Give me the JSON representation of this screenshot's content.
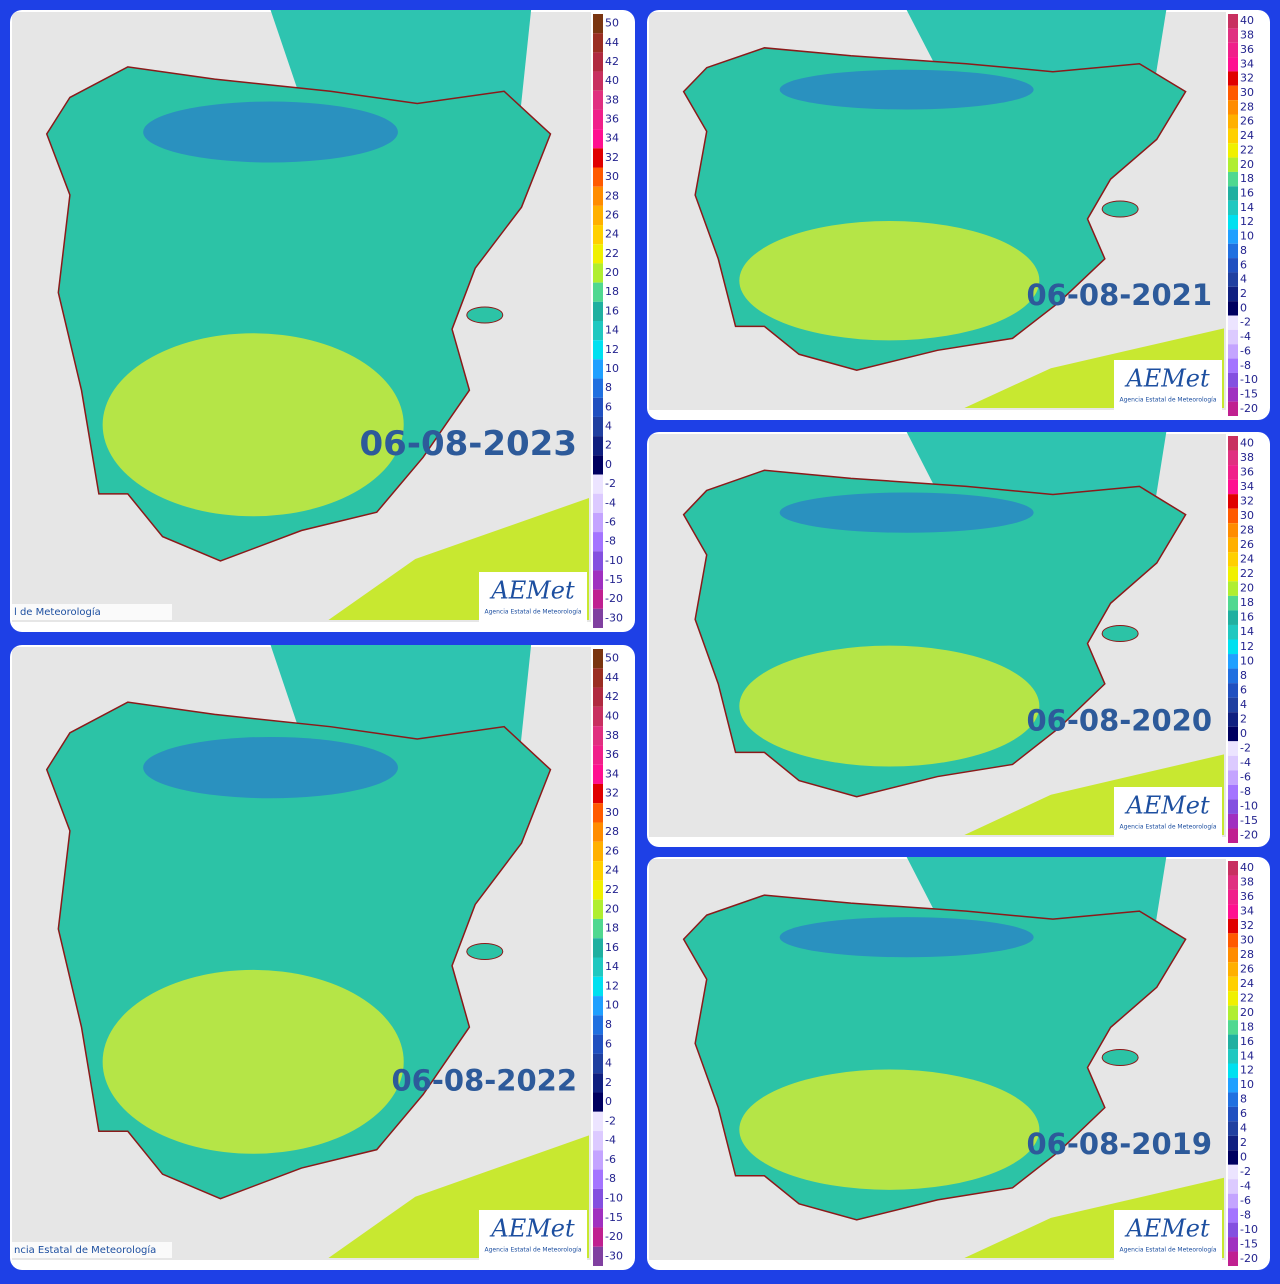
{
  "logo": {
    "name": "AEMet",
    "subtitle": "Agencia Estatal de Meteorología"
  },
  "panels": [
    {
      "date": "06-08-2023",
      "credit": "l de Meteorología",
      "legend": [
        "50",
        "44",
        "42",
        "40",
        "38",
        "36",
        "34",
        "32",
        "30",
        "28",
        "26",
        "24",
        "22",
        "20",
        "18",
        "16",
        "14",
        "12",
        "10",
        "8",
        "6",
        "4",
        "2",
        "0",
        "-2",
        "-4",
        "-6",
        "-8",
        "-10",
        "-15",
        "-20",
        "-30"
      ]
    },
    {
      "date": "06-08-2021",
      "legend": [
        "40",
        "38",
        "36",
        "34",
        "32",
        "30",
        "28",
        "26",
        "24",
        "22",
        "20",
        "18",
        "16",
        "14",
        "12",
        "10",
        "8",
        "6",
        "4",
        "2",
        "0",
        "-2",
        "-4",
        "-6",
        "-8",
        "-10",
        "-15",
        "-20"
      ]
    },
    {
      "date": "06-08-2020",
      "legend": [
        "40",
        "38",
        "36",
        "34",
        "32",
        "30",
        "28",
        "26",
        "24",
        "22",
        "20",
        "18",
        "16",
        "14",
        "12",
        "10",
        "8",
        "6",
        "4",
        "2",
        "0",
        "-2",
        "-4",
        "-6",
        "-8",
        "-10",
        "-15",
        "-20"
      ]
    },
    {
      "date": "06-08-2022",
      "credit": "ncia Estatal de Meteorología",
      "legend": [
        "50",
        "44",
        "42",
        "40",
        "38",
        "36",
        "34",
        "32",
        "30",
        "28",
        "26",
        "24",
        "22",
        "20",
        "18",
        "16",
        "14",
        "12",
        "10",
        "8",
        "6",
        "4",
        "2",
        "0",
        "-2",
        "-4",
        "-6",
        "-8",
        "-10",
        "-15",
        "-20",
        "-30"
      ]
    },
    {
      "date": "06-08-2019",
      "legend": [
        "40",
        "38",
        "36",
        "34",
        "32",
        "30",
        "28",
        "26",
        "24",
        "22",
        "20",
        "18",
        "16",
        "14",
        "12",
        "10",
        "8",
        "6",
        "4",
        "2",
        "0",
        "-2",
        "-4",
        "-6",
        "-8",
        "-10",
        "-15",
        "-20"
      ]
    }
  ]
}
